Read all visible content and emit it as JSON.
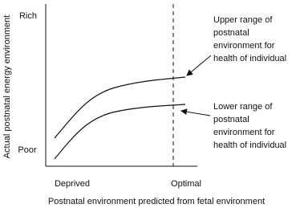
{
  "y_axis": {
    "label": "Actual postnatal energy environment",
    "top_label": "Rich",
    "bottom_label": "Poor"
  },
  "x_axis": {
    "label": "Postnatal environment predicted from fetal environment",
    "left_label": "Deprived",
    "right_label": "Optimal"
  },
  "annotations": [
    {
      "lines": [
        "Upper range of",
        "postnatal",
        "environment for",
        "health of individual"
      ]
    },
    {
      "lines": [
        "Lower range of",
        "postnatal",
        "environment for",
        "health of individual"
      ]
    }
  ]
}
